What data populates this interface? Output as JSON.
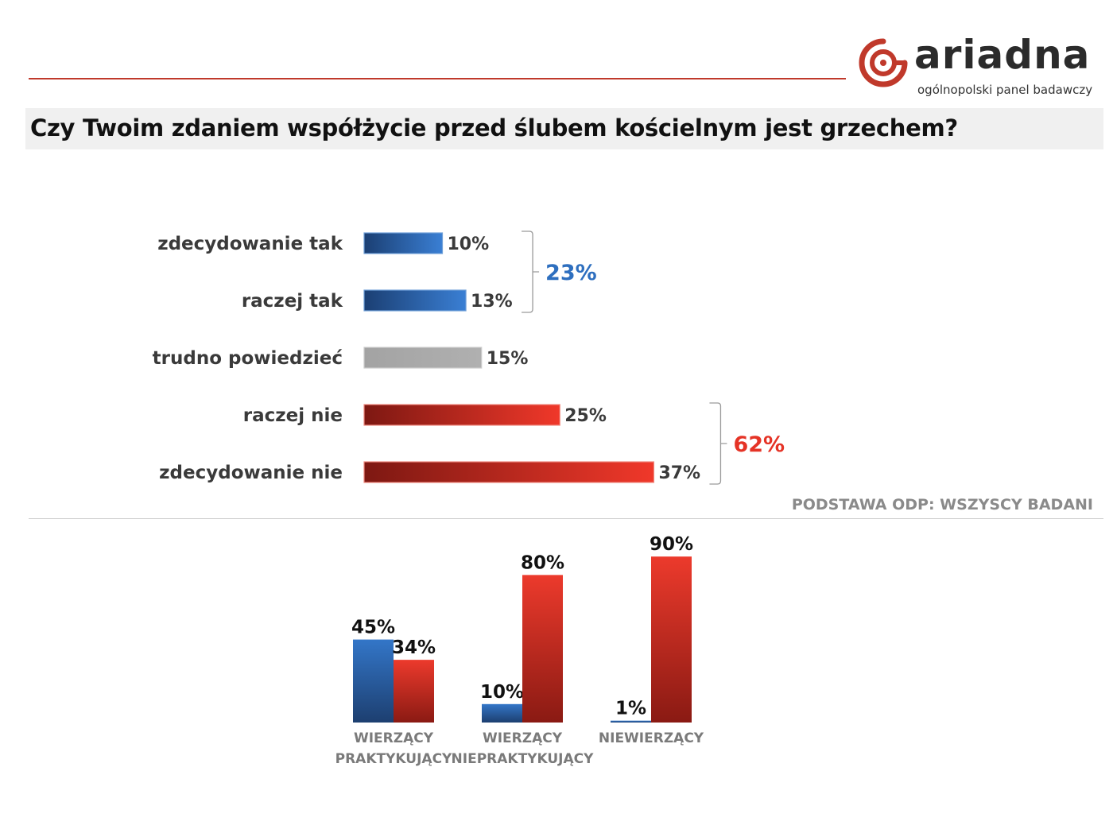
{
  "brand": {
    "name": "ariadna",
    "tagline": "ogólnopolski panel badawczy"
  },
  "question": "Czy Twoim zdaniem współżycie przed ślubem kościelnym jest grzechem?",
  "base_note": "PODSTAWA ODP: WSZYSCY BADANI",
  "colors": {
    "accent_red": "#c0392b",
    "blue": "#2e6fbf",
    "red": "#e53326",
    "gray": "#a8a8a8"
  },
  "chart_data": [
    {
      "type": "bar",
      "orientation": "horizontal",
      "categories": [
        "zdecydowanie tak",
        "raczej tak",
        "trudno powiedzieć",
        "raczej nie",
        "zdecydowanie nie"
      ],
      "values": [
        10,
        13,
        15,
        25,
        37
      ],
      "value_labels": [
        "10%",
        "13%",
        "15%",
        "25%",
        "37%"
      ],
      "bar_colors": [
        "blue",
        "blue",
        "gray",
        "red",
        "red"
      ],
      "groups": [
        {
          "categories": [
            "zdecydowanie tak",
            "raczej tak"
          ],
          "total_label": "23%",
          "color": "blue"
        },
        {
          "categories": [
            "raczej nie",
            "zdecydowanie nie"
          ],
          "total_label": "62%",
          "color": "red"
        }
      ]
    },
    {
      "type": "bar",
      "orientation": "vertical",
      "categories": [
        [
          "WIERZĄCY",
          "PRAKTYKUJĄCY"
        ],
        [
          "WIERZĄCY",
          "NIEPRAKTYKUJĄCY"
        ],
        [
          "NIEWIERZĄCY"
        ]
      ],
      "series": [
        {
          "color": "blue",
          "values": [
            45,
            10,
            1
          ],
          "value_labels": [
            "45%",
            "10%",
            "1%"
          ]
        },
        {
          "color": "red",
          "values": [
            34,
            80,
            90
          ],
          "value_labels": [
            "34%",
            "80%",
            "90%"
          ]
        }
      ],
      "ylim": [
        0,
        90
      ]
    }
  ]
}
